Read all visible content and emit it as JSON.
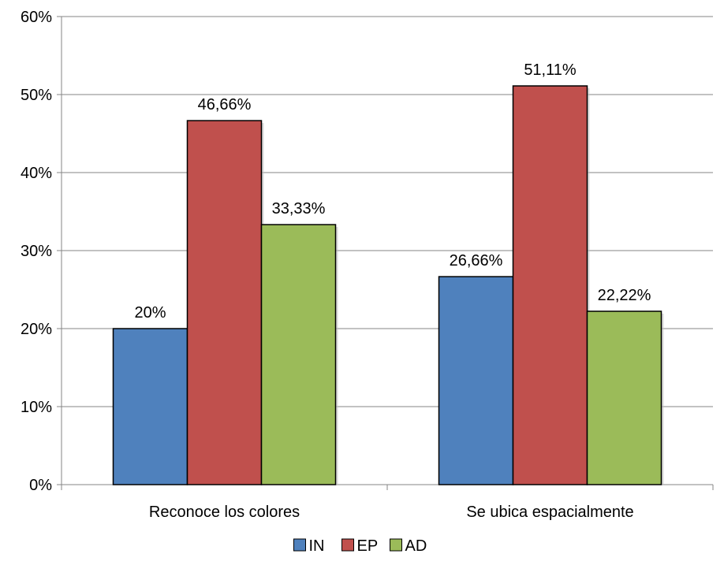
{
  "chart_data": {
    "type": "bar",
    "categories": [
      "Reconoce los colores",
      "Se ubica espacialmente"
    ],
    "series": [
      {
        "name": "IN",
        "values": [
          20,
          26.66
        ],
        "labels": [
          "20%",
          "26,66%"
        ],
        "color": "#4F81BD"
      },
      {
        "name": "EP",
        "values": [
          46.66,
          51.11
        ],
        "labels": [
          "46,66%",
          "51,11%"
        ],
        "color": "#C0504D"
      },
      {
        "name": "AD",
        "values": [
          33.33,
          22.22
        ],
        "labels": [
          "33,33%",
          "22,22%"
        ],
        "color": "#9BBB59"
      }
    ],
    "ylim": [
      0,
      60
    ],
    "yticks": [
      0,
      10,
      20,
      30,
      40,
      50,
      60
    ],
    "ytick_labels": [
      "0%",
      "10%",
      "20%",
      "30%",
      "40%",
      "50%",
      "60%"
    ],
    "grid": true,
    "legend": "bottom"
  }
}
